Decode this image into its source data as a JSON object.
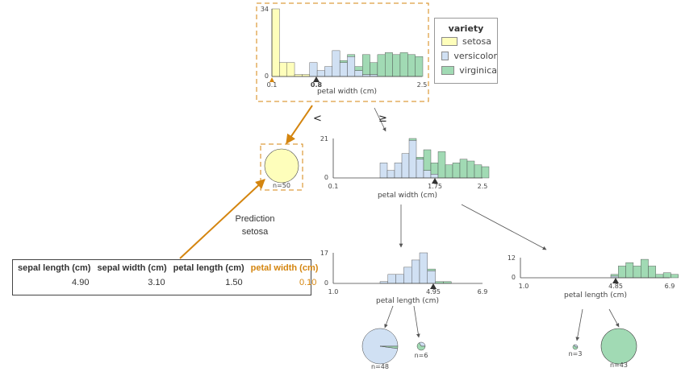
{
  "colors": {
    "setosa": "#fefebb",
    "versicolor": "#d0e0f3",
    "virginica": "#a1dab4",
    "highlight": "#d4850f",
    "bar_edge": "#444444"
  },
  "legend": {
    "title": "variety",
    "items": [
      {
        "label": "setosa",
        "color": "#fefebb"
      },
      {
        "label": "versicolor",
        "color": "#d0e0f3"
      },
      {
        "label": "virginica",
        "color": "#a1dab4"
      }
    ]
  },
  "edges": {
    "left_symbol": "<",
    "right_symbol": "≥"
  },
  "prediction": {
    "line1": "Prediction",
    "line2": "setosa"
  },
  "sample": {
    "headers": [
      "sepal length (cm)",
      "sepal width (cm)",
      "petal length (cm)",
      "petal width (cm)"
    ],
    "values": [
      "4.90",
      "3.10",
      "1.50",
      "0.10"
    ],
    "highlight_index": 3
  },
  "chart_data": [
    {
      "type": "bar",
      "id": "root",
      "xlabel": "petal width (cm)",
      "xlim": [
        0.1,
        2.5
      ],
      "ylim": [
        0,
        34
      ],
      "yticks": [
        "34",
        "0"
      ],
      "xticks": [
        "0.1",
        "0.8",
        "2.5"
      ],
      "split": "0.8",
      "categories": [
        "b1",
        "b2",
        "b3",
        "b4",
        "b5",
        "b6",
        "b7",
        "b8",
        "b9",
        "b10",
        "b11",
        "b12",
        "b13",
        "b14",
        "b15",
        "b16",
        "b17",
        "b18",
        "b19",
        "b20"
      ],
      "series": [
        {
          "name": "setosa",
          "values": [
            34,
            7,
            7,
            1,
            1,
            0,
            0,
            0,
            0,
            0,
            0,
            0,
            0,
            0,
            0,
            0,
            0,
            0,
            0,
            0
          ]
        },
        {
          "name": "versicolor",
          "values": [
            0,
            0,
            0,
            0,
            0,
            7,
            3,
            5,
            13,
            7,
            10,
            3,
            1,
            1,
            0,
            0,
            0,
            0,
            0,
            0
          ]
        },
        {
          "name": "virginica",
          "values": [
            0,
            0,
            0,
            0,
            0,
            0,
            0,
            0,
            0,
            1,
            1,
            2,
            10,
            6,
            11,
            12,
            11,
            12,
            11,
            10
          ]
        }
      ]
    },
    {
      "type": "bar",
      "id": "level1",
      "xlabel": "petal width (cm)",
      "xlim": [
        0.1,
        2.5
      ],
      "ylim": [
        0,
        21
      ],
      "yticks": [
        "21",
        "0"
      ],
      "xticks": [
        "0.1",
        "1.75",
        "2.5"
      ],
      "split": "1.75",
      "categories": [
        "c1",
        "c2",
        "c3",
        "c4",
        "c5",
        "c6",
        "c7",
        "c8",
        "c9",
        "c10",
        "c11",
        "c12",
        "c13",
        "c14",
        "c15"
      ],
      "series": [
        {
          "name": "versicolor",
          "values": [
            8,
            4,
            8,
            13,
            20,
            10,
            4,
            2,
            0,
            0,
            0,
            0,
            0,
            0,
            0
          ]
        },
        {
          "name": "virginica",
          "values": [
            0,
            0,
            0,
            0,
            1,
            1,
            11,
            6,
            14,
            7,
            8,
            10,
            9,
            7,
            6
          ]
        }
      ]
    },
    {
      "type": "bar",
      "id": "left2",
      "xlabel": "petal length (cm)",
      "xlim": [
        1.0,
        6.9
      ],
      "ylim": [
        0,
        17
      ],
      "yticks": [
        "17",
        "0"
      ],
      "xticks": [
        "1.0",
        "4.95",
        "6.9"
      ],
      "split": "4.95",
      "categories": [
        "d1",
        "d2",
        "d3",
        "d4",
        "d5",
        "d6",
        "d7",
        "d8",
        "d9"
      ],
      "series": [
        {
          "name": "versicolor",
          "values": [
            1,
            5,
            5,
            9,
            13,
            17,
            7,
            0,
            0
          ]
        },
        {
          "name": "virginica",
          "values": [
            0,
            0,
            0,
            0,
            0,
            0,
            1,
            1,
            1
          ]
        }
      ]
    },
    {
      "type": "bar",
      "id": "right2",
      "xlabel": "petal length (cm)",
      "xlim": [
        1.0,
        6.9
      ],
      "ylim": [
        0,
        12
      ],
      "yticks": [
        "12",
        "0"
      ],
      "xticks": [
        "1.0",
        "4.85",
        "6.9"
      ],
      "split": "4.85",
      "categories": [
        "e1",
        "e2",
        "e3",
        "e4",
        "e5",
        "e6",
        "e7",
        "e8",
        "e9"
      ],
      "series": [
        {
          "name": "versicolor",
          "values": [
            1,
            0,
            0,
            0,
            0,
            0,
            0,
            0,
            0
          ]
        },
        {
          "name": "virginica",
          "values": [
            1,
            7,
            9,
            7,
            11,
            7,
            2,
            3,
            2
          ]
        }
      ]
    },
    {
      "type": "pie",
      "id": "leaf-setosa",
      "label": "n=50",
      "slices": [
        {
          "name": "setosa",
          "value": 50
        }
      ]
    },
    {
      "type": "pie",
      "id": "leaf-48",
      "label": "n=48",
      "slices": [
        {
          "name": "versicolor",
          "value": 47
        },
        {
          "name": "virginica",
          "value": 1
        }
      ]
    },
    {
      "type": "pie",
      "id": "leaf-6",
      "label": "n=6",
      "slices": [
        {
          "name": "versicolor",
          "value": 2
        },
        {
          "name": "virginica",
          "value": 4
        }
      ]
    },
    {
      "type": "pie",
      "id": "leaf-3",
      "label": "n=3",
      "slices": [
        {
          "name": "versicolor",
          "value": 1
        },
        {
          "name": "virginica",
          "value": 2
        }
      ]
    },
    {
      "type": "pie",
      "id": "leaf-43",
      "label": "n=43",
      "slices": [
        {
          "name": "virginica",
          "value": 43
        }
      ]
    }
  ]
}
